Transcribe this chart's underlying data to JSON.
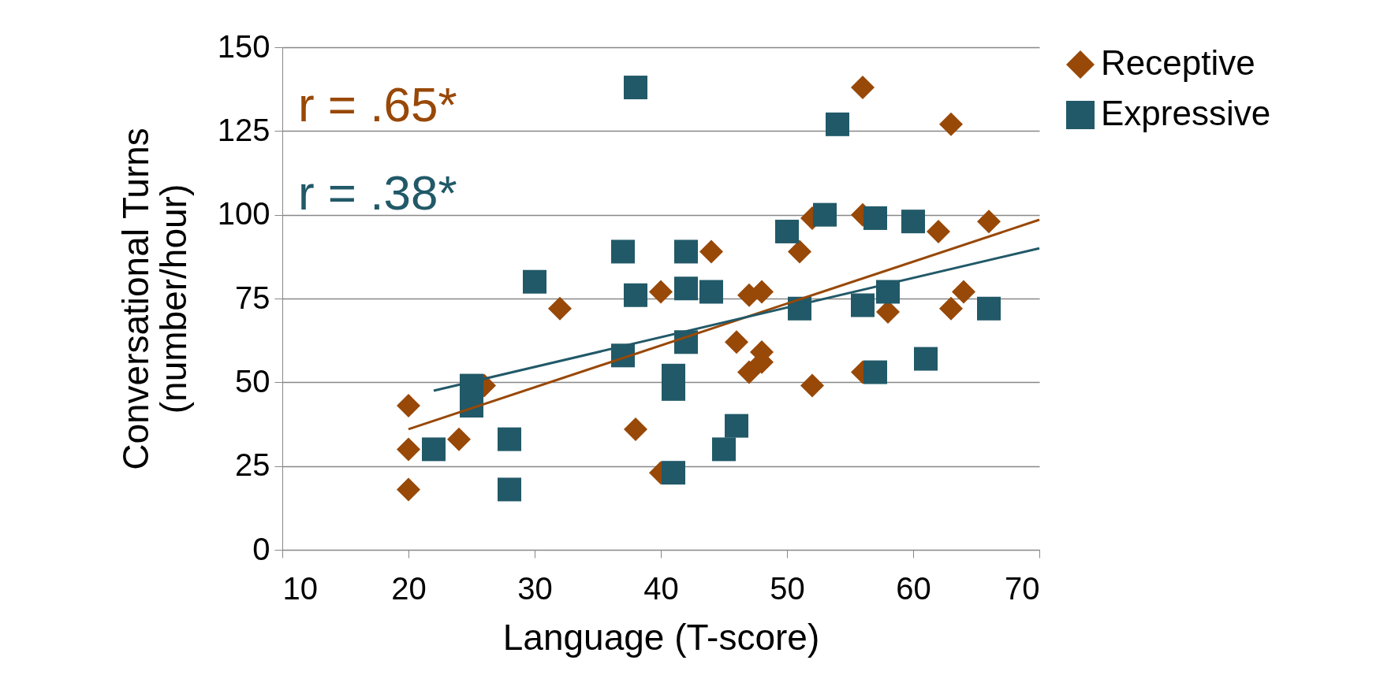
{
  "chart_data": {
    "type": "scatter",
    "xlabel": "Language (T-score)",
    "ylabel": "Conversational Turns\n(number/hour)",
    "xlim": [
      10,
      70
    ],
    "xticks": [
      10,
      20,
      30,
      40,
      50,
      60,
      70
    ],
    "ylim": [
      0,
      150
    ],
    "yticks": [
      0,
      25,
      50,
      75,
      100,
      125,
      150
    ],
    "grid": "y",
    "legend": "right",
    "annotations": [
      "r  = .65*",
      "r  = .38*"
    ],
    "series": [
      {
        "name": "Receptive",
        "color": "#984807",
        "marker": "diamond",
        "x": [
          20,
          20,
          20,
          24,
          26,
          32,
          38,
          40,
          40,
          44,
          46,
          47,
          47,
          48,
          48,
          48,
          51,
          52,
          52,
          56,
          56,
          56,
          58,
          62,
          63,
          63,
          64,
          66
        ],
        "values": [
          43,
          30,
          18,
          33,
          49,
          72,
          36,
          77,
          23,
          89,
          62,
          53,
          76,
          77,
          56,
          59,
          89,
          99,
          49,
          138,
          100,
          53,
          71,
          95,
          127,
          72,
          77,
          98
        ]
      },
      {
        "name": "Expressive",
        "color": "#215968",
        "marker": "square",
        "x": [
          22,
          25,
          25,
          28,
          28,
          30,
          37,
          37,
          38,
          38,
          41,
          41,
          41,
          42,
          42,
          42,
          44,
          45,
          46,
          50,
          51,
          53,
          54,
          56,
          57,
          57,
          58,
          60,
          61,
          66
        ],
        "values": [
          30,
          49,
          43,
          33,
          18,
          80,
          89,
          58,
          138,
          76,
          52,
          48,
          23,
          89,
          78,
          62,
          77,
          30,
          37,
          95,
          72,
          100,
          127,
          73,
          99,
          53,
          77,
          98,
          57,
          72
        ]
      },
      {
        "type": "line",
        "color": "#984807",
        "x": [
          20,
          70
        ],
        "values": [
          36,
          98.5
        ]
      },
      {
        "type": "line",
        "color": "#215968",
        "x": [
          22,
          70
        ],
        "values": [
          47.5,
          90
        ]
      }
    ]
  }
}
